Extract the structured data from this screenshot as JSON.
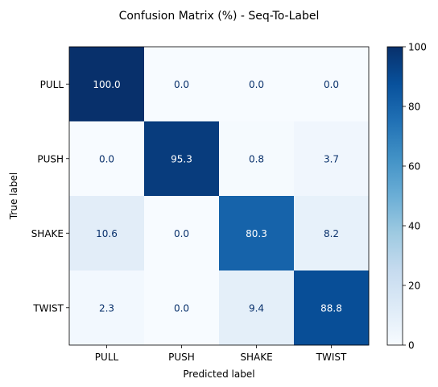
{
  "chart_data": {
    "type": "heatmap",
    "title": "Confusion Matrix (%) - Seq-To-Label",
    "xlabel": "Predicted label",
    "ylabel": "True label",
    "x_categories": [
      "PULL",
      "PUSH",
      "SHAKE",
      "TWIST"
    ],
    "y_categories": [
      "PULL",
      "PUSH",
      "SHAKE",
      "TWIST"
    ],
    "values": [
      [
        100.0,
        0.0,
        0.0,
        0.0
      ],
      [
        0.0,
        95.3,
        0.8,
        3.7
      ],
      [
        10.6,
        0.0,
        80.3,
        8.2
      ],
      [
        2.3,
        0.0,
        9.4,
        88.8
      ]
    ],
    "value_format": "0.0",
    "colormap": "Blues",
    "colorbar": {
      "min": 0,
      "max": 100,
      "ticks": [
        0,
        20,
        40,
        60,
        80,
        100
      ]
    },
    "text_colors": {
      "dark_cell": "#ffffff",
      "light_cell": "#08306b"
    }
  }
}
